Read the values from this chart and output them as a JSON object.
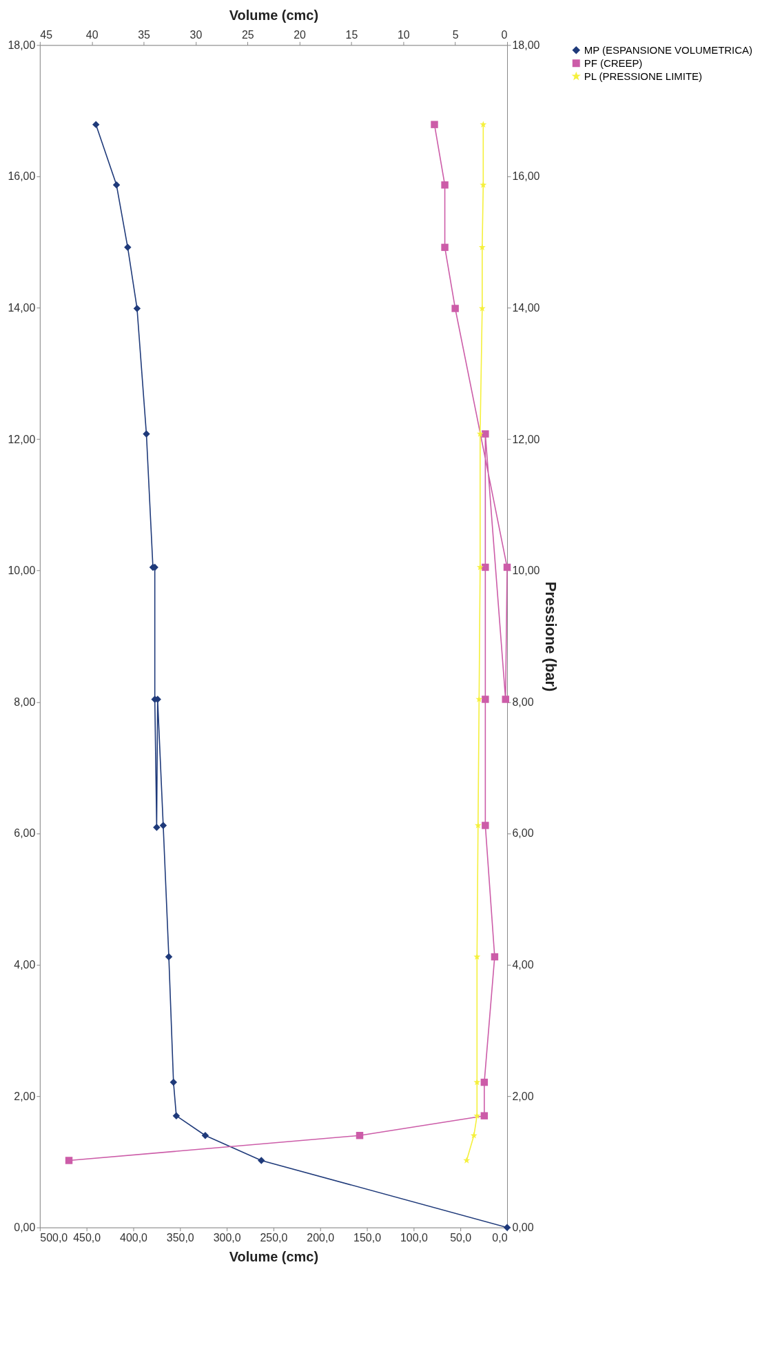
{
  "chart_data": {
    "type": "line",
    "xlabel": "Volume (cmc)",
    "x2label": "Volume (cmc)",
    "y2label": "Pressione (bar)",
    "xlim": [
      500,
      0
    ],
    "xticks": [
      {
        "value": 0,
        "label": "0,0"
      },
      {
        "value": 50,
        "label": "50,0"
      },
      {
        "value": 100,
        "label": "100,0"
      },
      {
        "value": 150,
        "label": "150,0"
      },
      {
        "value": 200,
        "label": "200,0"
      },
      {
        "value": 250,
        "label": "250,0"
      },
      {
        "value": 300,
        "label": "300,0"
      },
      {
        "value": 350,
        "label": "350,0"
      },
      {
        "value": 400,
        "label": "400,0"
      },
      {
        "value": 450,
        "label": "450,0"
      },
      {
        "value": 500,
        "label": "500,0"
      }
    ],
    "x2lim": [
      45,
      0
    ],
    "x2ticks": [
      0,
      5,
      10,
      15,
      20,
      25,
      30,
      35,
      40,
      45
    ],
    "ylim": [
      0,
      18
    ],
    "yticks": [
      {
        "value": 0,
        "label": "0,00"
      },
      {
        "value": 2,
        "label": "2,00"
      },
      {
        "value": 4,
        "label": "4,00"
      },
      {
        "value": 6,
        "label": "6,00"
      },
      {
        "value": 8,
        "label": "8,00"
      },
      {
        "value": 10,
        "label": "10,00"
      },
      {
        "value": 12,
        "label": "12,00"
      },
      {
        "value": 14,
        "label": "14,00"
      },
      {
        "value": 16,
        "label": "16,00"
      },
      {
        "value": 18,
        "label": "18,00"
      }
    ],
    "y2lim": [
      0,
      18
    ],
    "y2ticks": [
      {
        "value": 0,
        "label": "0,00"
      },
      {
        "value": 2,
        "label": "2,00"
      },
      {
        "value": 4,
        "label": "4,00"
      },
      {
        "value": 6,
        "label": "6,00"
      },
      {
        "value": 8,
        "label": "8,00"
      },
      {
        "value": 10,
        "label": "10,00"
      },
      {
        "value": 12,
        "label": "12,00"
      },
      {
        "value": 14,
        "label": "14,00"
      },
      {
        "value": 16,
        "label": "16,00"
      },
      {
        "value": 18,
        "label": "18,00"
      }
    ],
    "grid": false,
    "legend": "right",
    "line_style": "solid",
    "series": [
      {
        "name": "MP (ESPANSIONE VOLUMETRICA)",
        "color": "#1f3a7a",
        "marker": "diamond",
        "x": [
          0,
          263,
          323,
          354,
          357,
          362,
          368,
          374,
          375,
          377,
          377,
          379,
          386,
          396,
          406,
          418,
          440
        ],
        "values": [
          0,
          1.02,
          1.4,
          1.7,
          2.21,
          4.12,
          6.12,
          8.04,
          6.09,
          8.04,
          10.05,
          10.05,
          12.08,
          13.99,
          14.92,
          15.87,
          16.79
        ]
      },
      {
        "name": "PF (CREEP)",
        "color": "#cc5ca8",
        "marker": "square",
        "axis": "x2",
        "x": [
          42.2,
          14.2,
          2.2,
          2.2,
          1.2,
          2.1,
          2.1,
          2.1,
          2.1,
          0.15,
          0,
          5.0,
          6.0,
          6.0,
          7.0
        ],
        "values": [
          1.02,
          1.4,
          1.7,
          2.21,
          4.12,
          6.12,
          8.04,
          10.05,
          12.08,
          8.04,
          10.05,
          13.99,
          14.92,
          15.87,
          16.79
        ]
      },
      {
        "name": "PL (PRESSIONE LIMITE)",
        "color": "#f5f03c",
        "marker": "star",
        "axis": "x2",
        "x": [
          3.9,
          3.2,
          2.9,
          2.9,
          2.9,
          2.8,
          2.7,
          2.6,
          2.6,
          2.4,
          2.4,
          2.3,
          2.3
        ],
        "values": [
          1.02,
          1.4,
          1.7,
          2.21,
          4.12,
          6.12,
          8.04,
          10.05,
          12.08,
          13.99,
          14.92,
          15.87,
          16.79
        ]
      }
    ]
  }
}
